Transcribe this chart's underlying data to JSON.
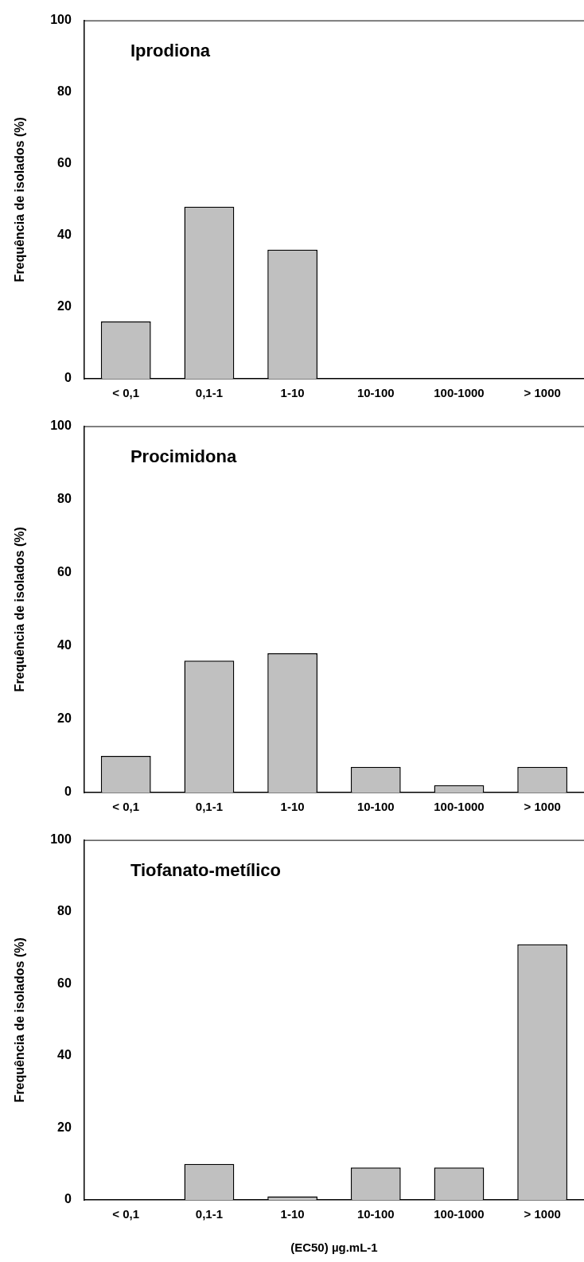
{
  "chart_data": [
    {
      "type": "bar",
      "title": "Iprodiona",
      "ylabel": "Frequência de isolados (%)",
      "categories": [
        "< 0,1",
        "0,1-1",
        "1-10",
        "10-100",
        "100-1000",
        "> 1000"
      ],
      "values": [
        16,
        48,
        36,
        0,
        0,
        0
      ],
      "color": "#c0c0c0",
      "ylim": [
        0,
        100
      ],
      "yticks": [
        0,
        20,
        40,
        60,
        80,
        100
      ],
      "grid": false,
      "legend": false
    },
    {
      "type": "bar",
      "title": "Procimidona",
      "ylabel": "Frequência de isolados (%)",
      "categories": [
        "< 0,1",
        "0,1-1",
        "1-10",
        "10-100",
        "100-1000",
        "> 1000"
      ],
      "values": [
        10,
        36,
        38,
        7,
        2,
        7
      ],
      "color": "#c0c0c0",
      "ylim": [
        0,
        100
      ],
      "yticks": [
        0,
        20,
        40,
        60,
        80,
        100
      ],
      "grid": false,
      "legend": false
    },
    {
      "type": "bar",
      "title": "Tiofanato-metílico",
      "ylabel": "Frequência de isolados (%)",
      "xlabel": "(EC50) µg.mL-1",
      "categories": [
        "< 0,1",
        "0,1-1",
        "1-10",
        "10-100",
        "100-1000",
        "> 1000"
      ],
      "values": [
        0,
        10,
        1,
        9,
        9,
        71
      ],
      "color": "#c0c0c0",
      "ylim": [
        0,
        100
      ],
      "yticks": [
        0,
        20,
        40,
        60,
        80,
        100
      ],
      "grid": false,
      "legend": false
    }
  ]
}
